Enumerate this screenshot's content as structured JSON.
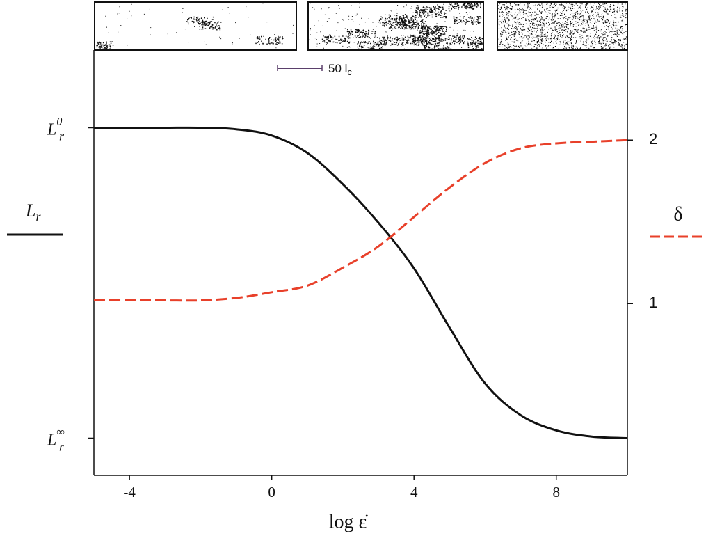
{
  "chart_data": {
    "type": "line",
    "x": [
      -5,
      -4,
      -3,
      -2,
      -1,
      0,
      1,
      2,
      3,
      4,
      5,
      6,
      7,
      8,
      9,
      10
    ],
    "series": [
      {
        "color": "#111111",
        "style": "solid",
        "values": [
          1.0,
          1.0,
          1.0,
          1.0,
          0.995,
          0.975,
          0.919,
          0.818,
          0.694,
          0.547,
          0.356,
          0.176,
          0.074,
          0.025,
          0.005,
          0.0
        ]
      },
      {
        "color": "#e8402a",
        "style": "dashed",
        "axis": "y2",
        "values": [
          1.02,
          1.02,
          1.02,
          1.02,
          1.035,
          1.07,
          1.11,
          1.22,
          1.35,
          1.53,
          1.71,
          1.86,
          1.95,
          1.98,
          1.99,
          2.0
        ]
      }
    ],
    "xlim": [
      -5,
      10
    ],
    "xticks": [
      -4,
      0,
      4,
      8
    ],
    "ylim": [
      -0.12,
      1.25
    ],
    "yticks": [
      {
        "value": 1,
        "label": "L",
        "sub": "r",
        "sup": "0"
      },
      {
        "value": 0,
        "label": "L",
        "sub": "r",
        "sup": "∞"
      }
    ],
    "y2lim": [
      -0.05,
      2.55
    ],
    "y2ticks": [
      1,
      2
    ],
    "xlabel": "log ε̇",
    "ylabel": {
      "text": "L",
      "sub": "r"
    },
    "y2label": "δ",
    "scale_bar": "50 l",
    "scale_bar_sub": "c"
  }
}
